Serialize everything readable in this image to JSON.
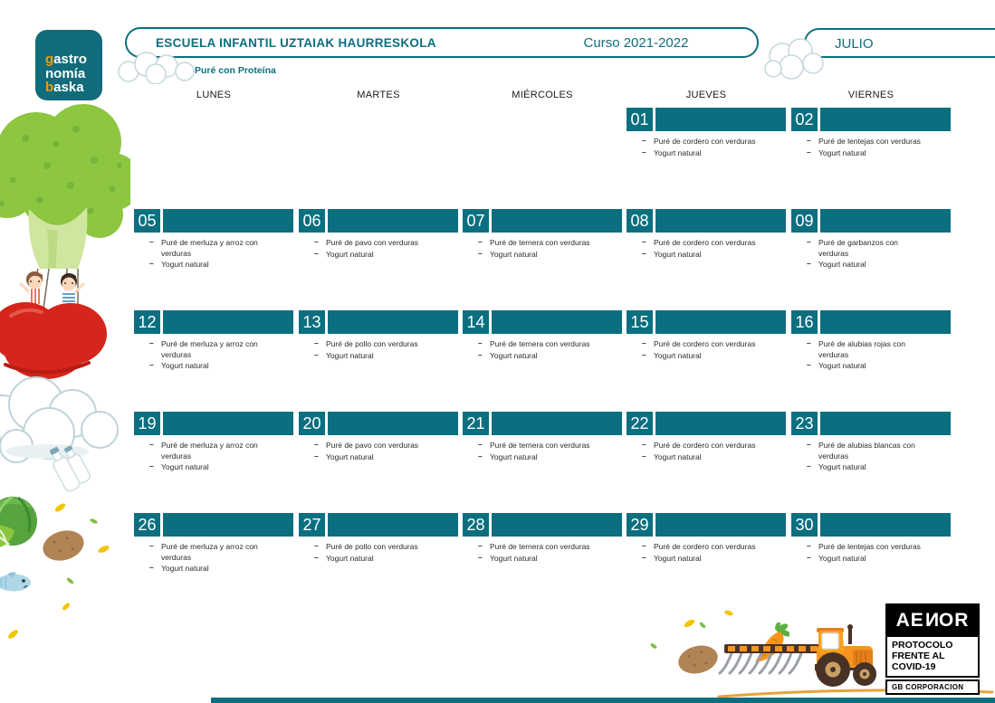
{
  "logo": {
    "lines": [
      {
        "accent": "g",
        "text": "astro"
      },
      {
        "accent": "",
        "text": "nomía"
      },
      {
        "accent": "b",
        "text": "aska"
      }
    ]
  },
  "header": {
    "school_name": "ESCUELA INFANTIL UZTAIAK HAURRESKOLA",
    "course": "Curso 2021-2022",
    "month": "JULIO",
    "menu_type": "Puré con Proteína"
  },
  "calendar": {
    "bullet": "–",
    "day_headers": [
      "LUNES",
      "MARTES",
      "MIÉRCOLES",
      "JUEVES",
      "VIERNES"
    ],
    "weeks": [
      [
        null,
        null,
        null,
        {
          "date": "01",
          "items": [
            "Puré de cordero con verduras",
            "Yogurt natural"
          ]
        },
        {
          "date": "02",
          "items": [
            "Puré de lentejas con verduras",
            "Yogurt natural"
          ]
        }
      ],
      [
        {
          "date": "05",
          "items": [
            "Puré de merluza y arroz con verduras",
            "Yogurt natural"
          ]
        },
        {
          "date": "06",
          "items": [
            "Puré de pavo con verduras",
            "Yogurt natural"
          ]
        },
        {
          "date": "07",
          "items": [
            "Puré de ternera con verduras",
            "Yogurt natural"
          ]
        },
        {
          "date": "08",
          "items": [
            "Puré de cordero con verduras",
            "Yogurt natural"
          ]
        },
        {
          "date": "09",
          "items": [
            "Puré de garbanzos con verduras",
            "Yogurt natural"
          ]
        }
      ],
      [
        {
          "date": "12",
          "items": [
            "Puré de merluza y arroz con verduras",
            "Yogurt natural"
          ]
        },
        {
          "date": "13",
          "items": [
            "Puré de pollo con verduras",
            "Yogurt natural"
          ]
        },
        {
          "date": "14",
          "items": [
            "Puré de ternera con verduras",
            "Yogurt natural"
          ]
        },
        {
          "date": "15",
          "items": [
            "Puré de cordero con verduras",
            "Yogurt natural"
          ]
        },
        {
          "date": "16",
          "items": [
            "Puré de alubias rojas con verduras",
            "Yogurt natural"
          ]
        }
      ],
      [
        {
          "date": "19",
          "items": [
            "Puré de merluza y arroz con verduras",
            "Yogurt natural"
          ]
        },
        {
          "date": "20",
          "items": [
            "Puré de pavo con verduras",
            "Yogurt natural"
          ]
        },
        {
          "date": "21",
          "items": [
            "Puré de ternera con verduras",
            "Yogurt natural"
          ]
        },
        {
          "date": "22",
          "items": [
            "Puré de cordero con verduras",
            "Yogurt natural"
          ]
        },
        {
          "date": "23",
          "items": [
            "Puré de alubias blancas con verduras",
            "Yogurt natural"
          ]
        }
      ],
      [
        {
          "date": "26",
          "items": [
            "Puré de merluza y arroz con verduras",
            "Yogurt natural"
          ]
        },
        {
          "date": "27",
          "items": [
            "Puré de pollo con verduras",
            "Yogurt natural"
          ]
        },
        {
          "date": "28",
          "items": [
            "Puré de ternera con verduras",
            "Yogurt natural"
          ]
        },
        {
          "date": "29",
          "items": [
            "Puré de cordero con verduras",
            "Yogurt natural"
          ]
        },
        {
          "date": "30",
          "items": [
            "Puré de lentejas con verduras",
            "Yogurt natural"
          ]
        }
      ]
    ]
  },
  "covid_badge": {
    "brand_parts": [
      "AE",
      "N",
      "OR"
    ],
    "line1": "PROTOCOLO",
    "line2": "FRENTE AL COVID-19",
    "footer": "GB CORPORACION"
  },
  "decorations": {
    "left": [
      "broccoli-balloon",
      "kids-on-tomato",
      "cloud",
      "milk-bottles",
      "cabbage",
      "potato",
      "fish",
      "seeds"
    ],
    "top": [
      "cloud-left",
      "cloud-middle"
    ],
    "bottom": [
      "potato",
      "carrot",
      "rake",
      "tractor",
      "seeds",
      "ground-line",
      "teal-strip"
    ]
  },
  "colors": {
    "teal": "#0c6f80",
    "logo_teal": "#126b7a",
    "accent_orange": "#f39a00",
    "tractor_orange": "#f7941e",
    "seed_yellow": "#f2c500",
    "seed_green": "#7fbf3f",
    "text_dark": "#2b2b2b",
    "badge_black": "#000000"
  }
}
